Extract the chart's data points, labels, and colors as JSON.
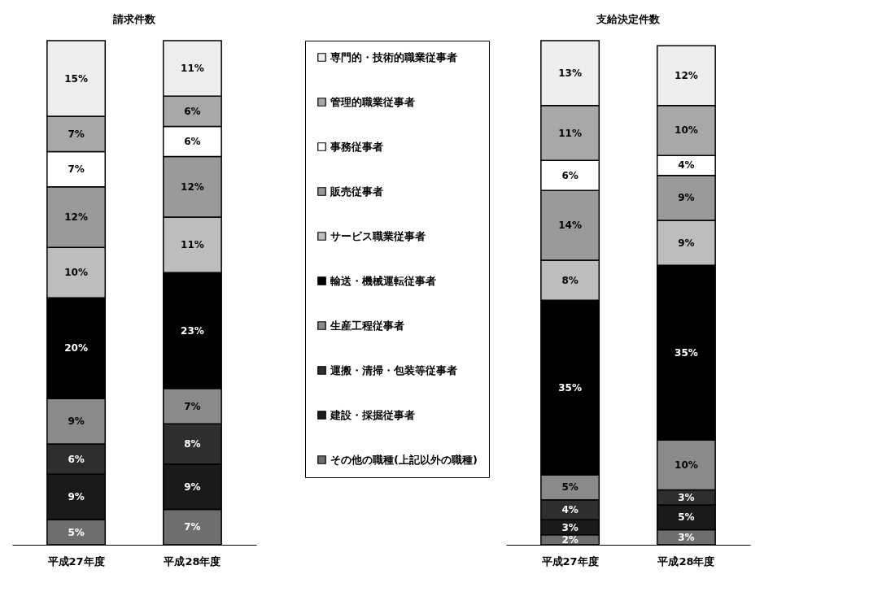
{
  "chart_data": [
    {
      "type": "bar",
      "stacked": true,
      "title": "請求件数",
      "categories": [
        "平成27年度",
        "平成28年度"
      ],
      "legend": "right",
      "series": [
        {
          "name": "その他の職種(上記以外の職種)",
          "color": "#6e6e6e",
          "values": [
            5,
            7
          ],
          "value_labels": [
            "5%",
            "7%"
          ]
        },
        {
          "name": "建設・採掘従事者",
          "color": "#1a1a1a",
          "values": [
            9,
            9
          ],
          "value_labels": [
            "9%",
            "9%"
          ]
        },
        {
          "name": "運搬・清掃・包装等従事者",
          "color": "#2e2e2e",
          "values": [
            6,
            8
          ],
          "value_labels": [
            "6%",
            "8%"
          ]
        },
        {
          "name": "生産工程従事者",
          "color": "#8a8a8a",
          "values": [
            9,
            7
          ],
          "value_labels": [
            "9%",
            "7%"
          ]
        },
        {
          "name": "輸送・機械運転従事者",
          "color": "#000000",
          "values": [
            20,
            23
          ],
          "value_labels": [
            "20%",
            "23%"
          ]
        },
        {
          "name": "サービス職業従事者",
          "color": "#bdbdbd",
          "values": [
            10,
            11
          ],
          "value_labels": [
            "10%",
            "11%"
          ]
        },
        {
          "name": "販売従事者",
          "color": "#9a9a9a",
          "values": [
            12,
            12
          ],
          "value_labels": [
            "12%",
            "12%"
          ]
        },
        {
          "name": "事務従事者",
          "color": "#ffffff",
          "values": [
            7,
            6
          ],
          "value_labels": [
            "7%",
            "6%"
          ]
        },
        {
          "name": "管理的職業従事者",
          "color": "#a8a8a8",
          "values": [
            7,
            6
          ],
          "value_labels": [
            "7%",
            "6%"
          ]
        },
        {
          "name": "専門的・技術的職業従事者",
          "color": "#eeeeee",
          "values": [
            15,
            11
          ],
          "value_labels": [
            "15%",
            "11%"
          ]
        }
      ]
    },
    {
      "type": "bar",
      "stacked": true,
      "title": "支給決定件数",
      "categories": [
        "平成27年度",
        "平成28年度"
      ],
      "series": [
        {
          "color": "#6e6e6e",
          "values": [
            2,
            3
          ],
          "value_labels": [
            "2%",
            "3%"
          ]
        },
        {
          "color": "#1a1a1a",
          "values": [
            3,
            5
          ],
          "value_labels": [
            "3%",
            "5%"
          ]
        },
        {
          "color": "#2e2e2e",
          "values": [
            4,
            3
          ],
          "value_labels": [
            "4%",
            "3%"
          ]
        },
        {
          "color": "#8a8a8a",
          "values": [
            5,
            10
          ],
          "value_labels": [
            "5%",
            "10%"
          ]
        },
        {
          "color": "#000000",
          "values": [
            35,
            35
          ],
          "value_labels": [
            "35%",
            "35%"
          ]
        },
        {
          "color": "#bdbdbd",
          "values": [
            8,
            9
          ],
          "value_labels": [
            "8%",
            "9%"
          ]
        },
        {
          "color": "#9a9a9a",
          "values": [
            14,
            9
          ],
          "value_labels": [
            "14%",
            "9%"
          ]
        },
        {
          "color": "#ffffff",
          "values": [
            6,
            4
          ],
          "value_labels": [
            "6%",
            "4%"
          ]
        },
        {
          "color": "#a8a8a8",
          "values": [
            11,
            10
          ],
          "value_labels": [
            "11%",
            "10%"
          ]
        },
        {
          "color": "#eeeeee",
          "values": [
            13,
            12
          ],
          "value_labels": [
            "13%",
            "12%"
          ]
        }
      ]
    }
  ]
}
